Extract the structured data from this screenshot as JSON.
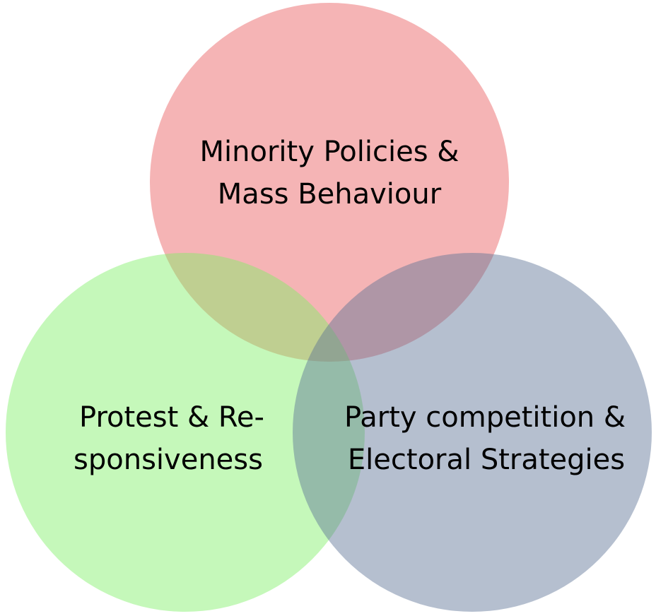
{
  "venn": {
    "sets": [
      {
        "id": "minority",
        "label_lines": [
          "Minority Policies &",
          "Mass Behaviour"
        ],
        "color": "#e8595c"
      },
      {
        "id": "protest",
        "label_lines": [
          "Protest & Re-",
          "sponsiveness"
        ],
        "color": "#7ef065"
      },
      {
        "id": "party",
        "label_lines": [
          "Party competition &",
          "Electoral Strategies"
        ],
        "color": "#5b7194"
      }
    ],
    "fill_opacity": 0.45
  }
}
